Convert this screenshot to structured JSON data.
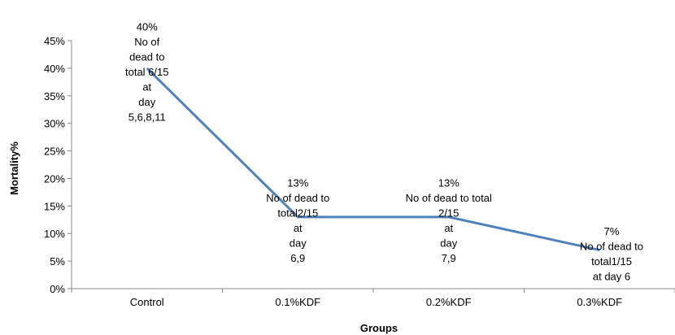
{
  "chart_data": {
    "type": "line",
    "title": "",
    "xlabel": "Groups",
    "ylabel": "Mortality%",
    "ylim": [
      0,
      45
    ],
    "ytick_step": 5,
    "ytick_format": "percent",
    "grid": false,
    "legend": "none",
    "categories": [
      "Control",
      "0.1%KDF",
      "0.2%KDF",
      "0.3%KDF"
    ],
    "series": [
      {
        "values": [
          40,
          13,
          13,
          7
        ],
        "color": "#4f81bd"
      }
    ],
    "data_labels": [
      [
        "40%",
        "No of",
        "dead to",
        "total 6/15",
        "at",
        "day",
        "5,6,8,11"
      ],
      [
        "13%",
        "No of dead to",
        "total2/15",
        "at",
        "day",
        "6,9"
      ],
      [
        "13%",
        "No of dead to total",
        "2/15",
        "at",
        "day",
        "7,9"
      ],
      [
        "7%",
        "No of dead to",
        "total1/15",
        "at day 6"
      ]
    ]
  }
}
